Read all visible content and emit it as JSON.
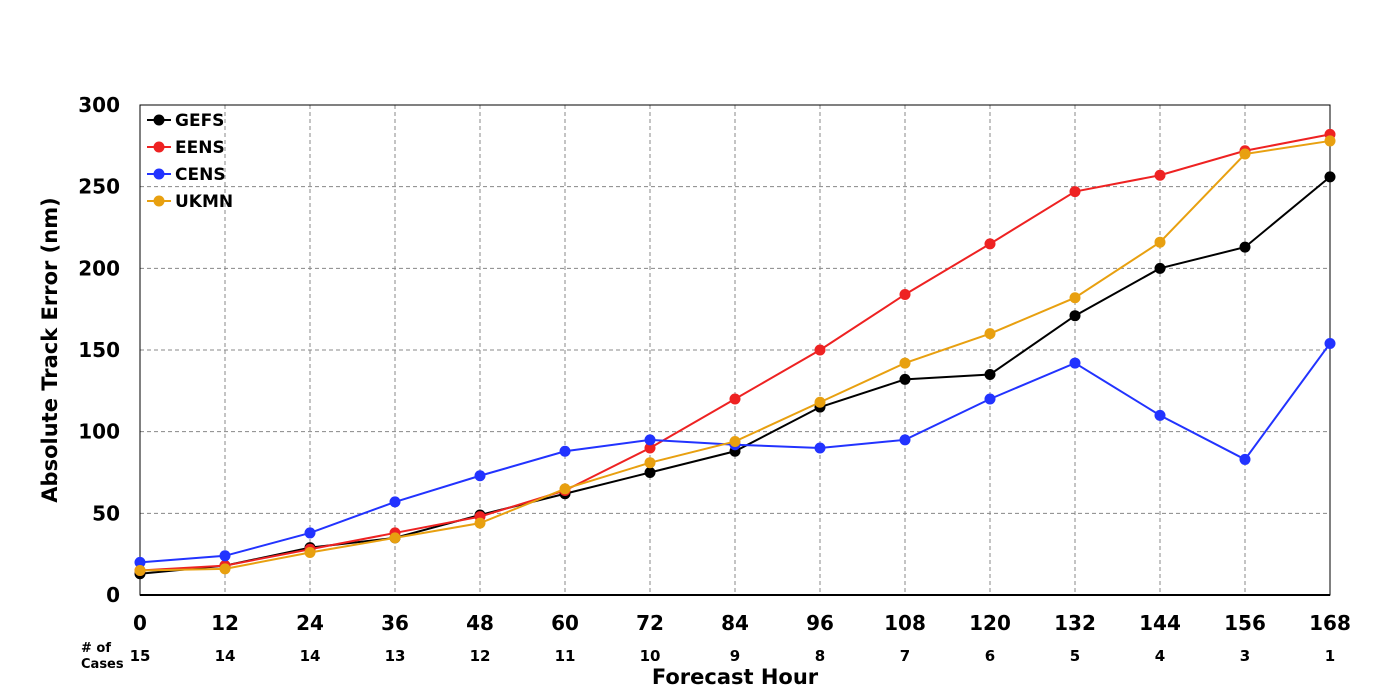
{
  "chart_data": {
    "type": "line",
    "title": "",
    "xlabel": "Forecast Hour",
    "ylabel": "Absolute Track Error (nm)",
    "x": [
      0,
      12,
      24,
      36,
      48,
      60,
      72,
      84,
      96,
      108,
      120,
      132,
      144,
      156,
      168
    ],
    "xlim": [
      0,
      168
    ],
    "ylim": [
      0,
      300
    ],
    "yticks": [
      0,
      50,
      100,
      150,
      200,
      250,
      300
    ],
    "grid": true,
    "legend_position": "top-left",
    "cases_title_line1": "# of",
    "cases_title_line2": "Cases",
    "cases": [
      15,
      14,
      14,
      13,
      12,
      11,
      10,
      9,
      8,
      7,
      6,
      5,
      4,
      3,
      1
    ],
    "series": [
      {
        "name": "GEFS",
        "color": "#000000",
        "values": [
          13,
          18,
          29,
          35,
          49,
          62,
          75,
          88,
          115,
          132,
          135,
          171,
          200,
          213,
          256
        ]
      },
      {
        "name": "EENS",
        "color": "#ee2222",
        "values": [
          15,
          18,
          28,
          38,
          48,
          64,
          90,
          120,
          150,
          184,
          215,
          247,
          257,
          272,
          282
        ]
      },
      {
        "name": "CENS",
        "color": "#2233ff",
        "values": [
          20,
          24,
          38,
          57,
          73,
          88,
          95,
          92,
          90,
          95,
          120,
          142,
          110,
          83,
          154
        ]
      },
      {
        "name": "UKMN",
        "color": "#e8a010",
        "values": [
          15,
          16,
          26,
          35,
          44,
          65,
          81,
          94,
          118,
          142,
          160,
          182,
          216,
          270,
          278
        ]
      }
    ]
  }
}
